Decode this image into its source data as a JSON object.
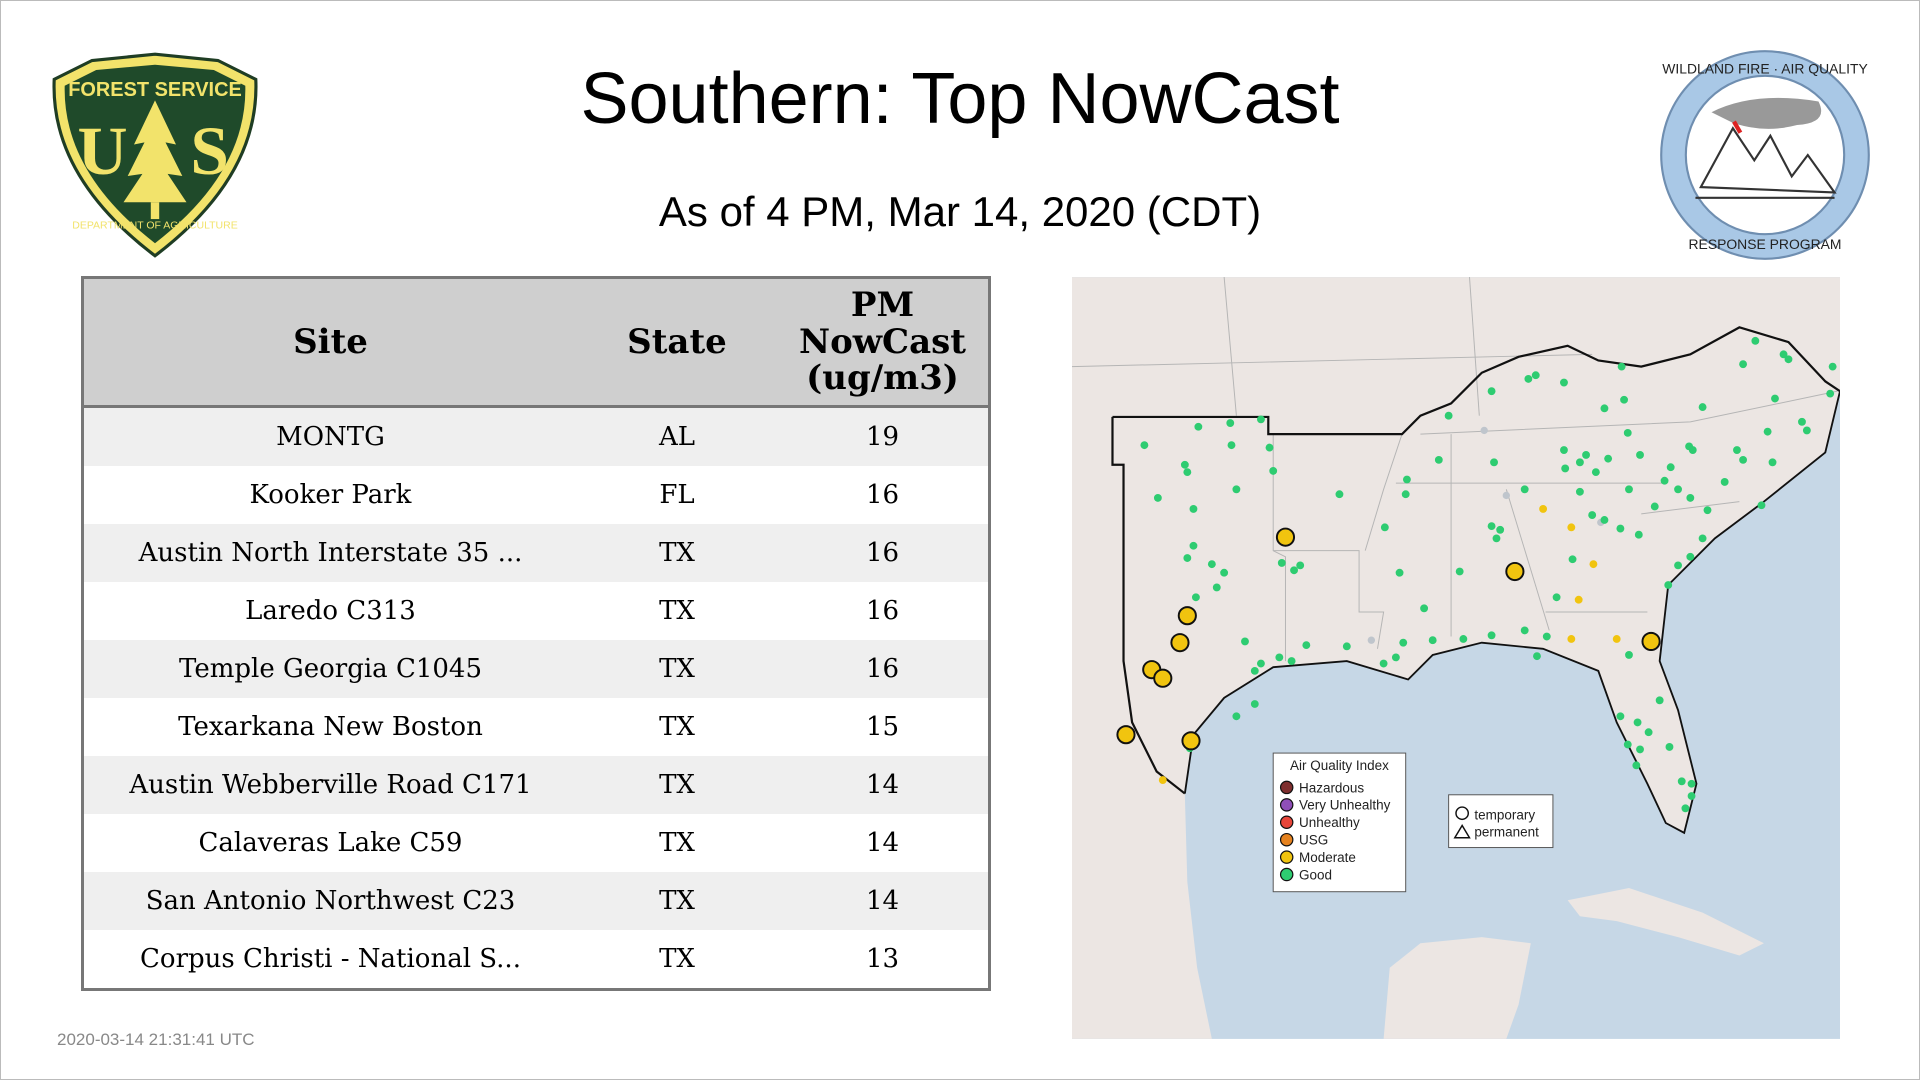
{
  "header": {
    "title": "Southern: Top NowCast",
    "subtitle": "As of  4 PM, Mar 14, 2020 (CDT)"
  },
  "logos": {
    "forest_service": {
      "top": "FOREST SERVICE",
      "letters": "U S",
      "bottom": "DEPARTMENT OF AGRICULTURE"
    },
    "wildland": {
      "top": "WILDLAND FIRE · AIR QUALITY",
      "bottom": "RESPONSE PROGRAM"
    }
  },
  "table": {
    "columns": [
      "Site",
      "State",
      "PM NowCast (ug/m3)"
    ],
    "column_lines": [
      "PM",
      "NowCast",
      "(ug/m3)"
    ],
    "rows": [
      {
        "site": "MONTG",
        "state": "AL",
        "value": "19"
      },
      {
        "site": "Kooker Park",
        "state": "FL",
        "value": "16"
      },
      {
        "site": "Austin North Interstate 35 ...",
        "state": "TX",
        "value": "16"
      },
      {
        "site": "Laredo C313",
        "state": "TX",
        "value": "16"
      },
      {
        "site": "Temple Georgia C1045",
        "state": "TX",
        "value": "16"
      },
      {
        "site": "Texarkana New Boston",
        "state": "TX",
        "value": "15"
      },
      {
        "site": "Austin Webberville Road C171",
        "state": "TX",
        "value": "14"
      },
      {
        "site": "Calaveras Lake C59",
        "state": "TX",
        "value": "14"
      },
      {
        "site": "San Antonio Northwest C23",
        "state": "TX",
        "value": "14"
      },
      {
        "site": "Corpus Christi - National S...",
        "state": "TX",
        "value": "13"
      }
    ]
  },
  "timestamp": "2020-03-14 21:31:41 UTC",
  "map": {
    "legend_title": "Air Quality Index",
    "legend": [
      {
        "label": "Hazardous",
        "color": "#7e2e2e"
      },
      {
        "label": "Very Unhealthy",
        "color": "#8f4fb8"
      },
      {
        "label": "Unhealthy",
        "color": "#e8463a"
      },
      {
        "label": "USG",
        "color": "#e5821f"
      },
      {
        "label": "Moderate",
        "color": "#f1c40f"
      },
      {
        "label": "Good",
        "color": "#2ecc71"
      }
    ],
    "shape_legend": [
      {
        "label": "temporary",
        "shape": "circle"
      },
      {
        "label": "permanent",
        "shape": "triangle"
      }
    ],
    "colors": {
      "land": "#ece6e3",
      "water": "#c6d7e6"
    }
  }
}
